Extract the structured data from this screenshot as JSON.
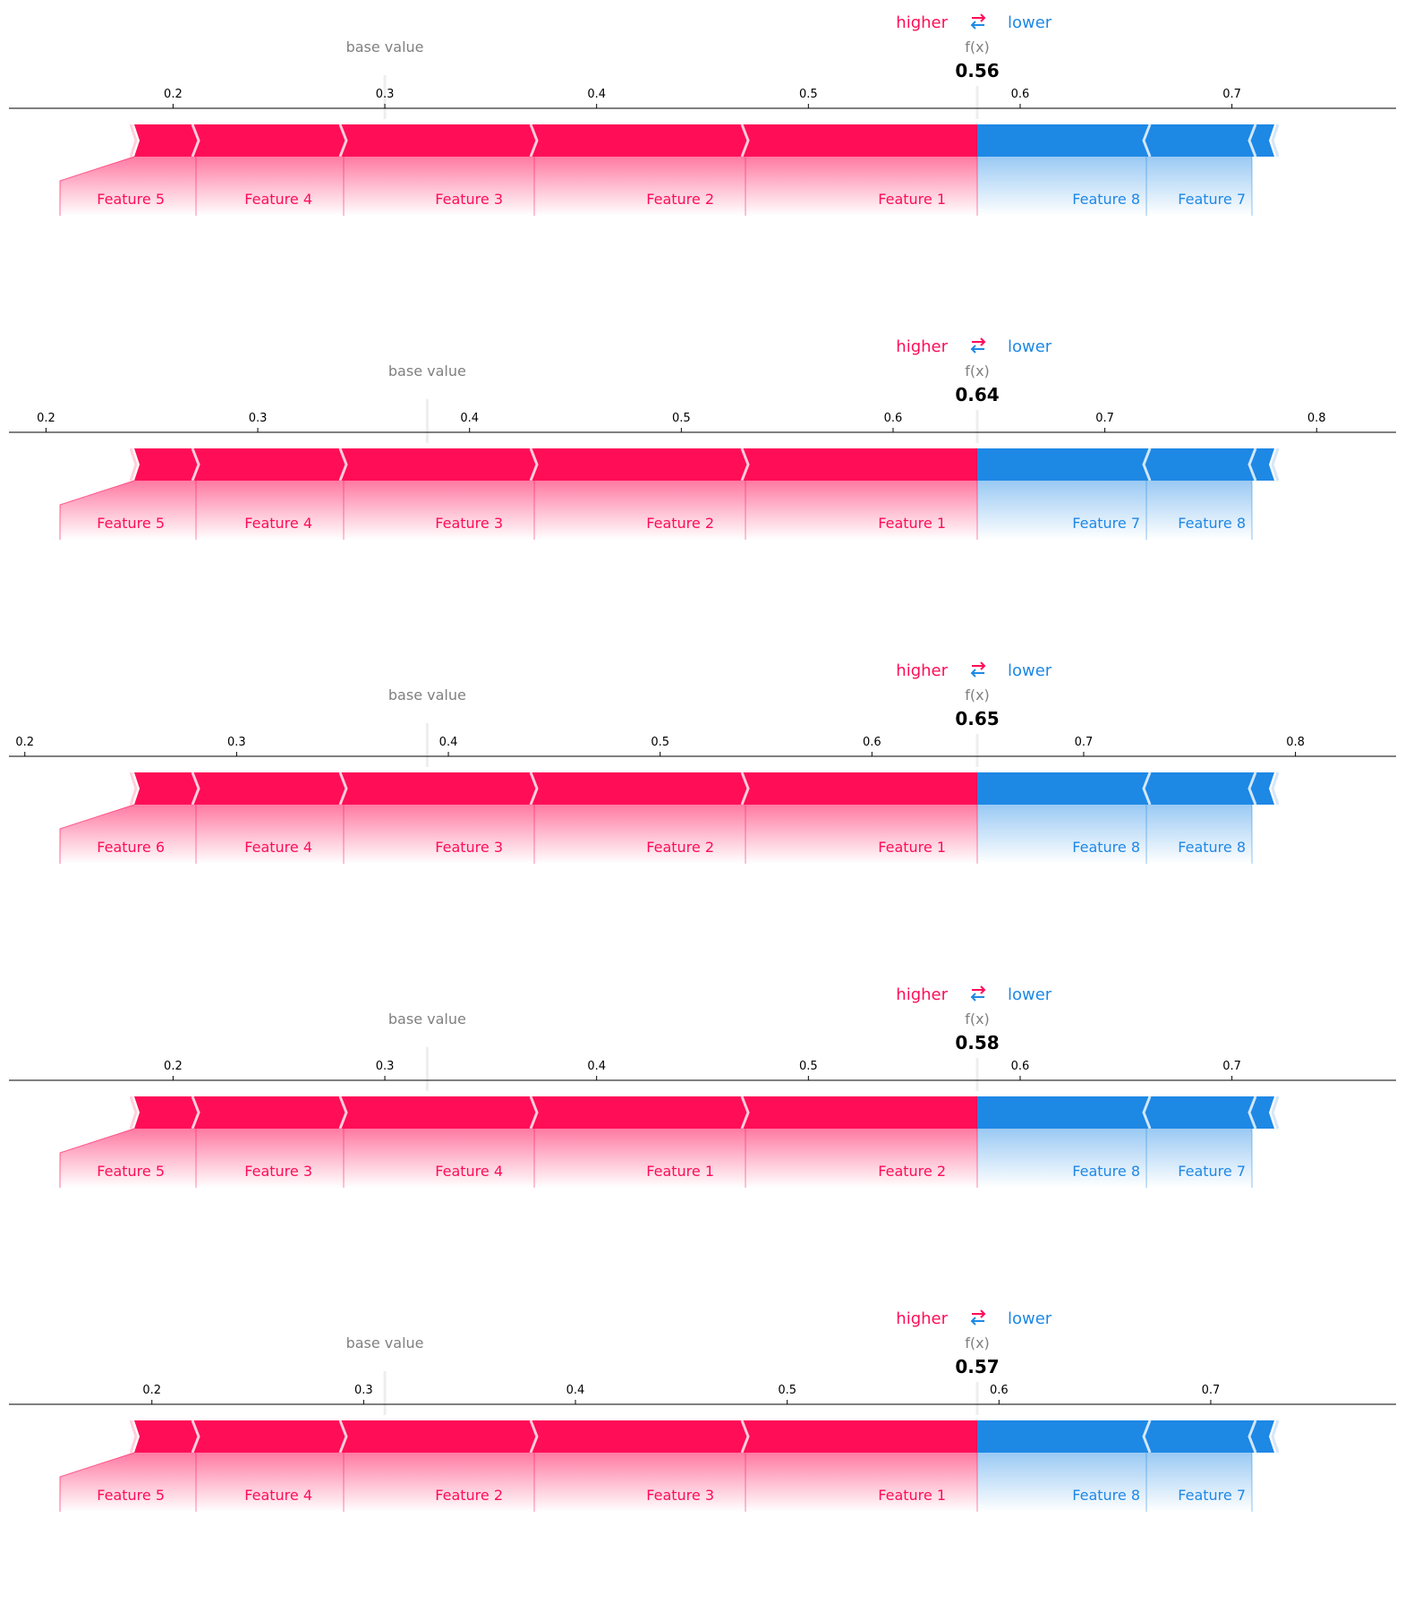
{
  "colors": {
    "positive": "#FF0D57",
    "negative": "#1E88E5",
    "muted": "#808080",
    "axis": "#000000",
    "baseline": "#EEEEEE"
  },
  "legend": {
    "higher": "higher",
    "lower": "lower",
    "arrows_icon": "swap-arrows-icon"
  },
  "labels": {
    "base_value": "base value",
    "fx": "f(x)"
  },
  "chart_data": [
    {
      "type": "force",
      "fx": 0.56,
      "fx_label": "0.56",
      "base_value": 0.3,
      "ticks": [
        "0.2",
        "0.3",
        "0.4",
        "0.5",
        "0.6",
        "0.7"
      ],
      "xlim": [
        0.1225,
        0.7775
      ],
      "positive_features": [
        "Feature 5",
        "Feature 4",
        "Feature 3",
        "Feature 2",
        "Feature 1"
      ],
      "negative_features": [
        "Feature 8",
        "Feature 7"
      ]
    },
    {
      "type": "force",
      "fx": 0.64,
      "fx_label": "0.64",
      "base_value": 0.38,
      "ticks": [
        "0.2",
        "0.3",
        "0.4",
        "0.5",
        "0.6",
        "0.7",
        "0.8"
      ],
      "xlim": [
        0.1825,
        0.8375
      ],
      "positive_features": [
        "Feature 5",
        "Feature 4",
        "Feature 3",
        "Feature 2",
        "Feature 1"
      ],
      "negative_features": [
        "Feature 7",
        "Feature 8"
      ]
    },
    {
      "type": "force",
      "fx": 0.65,
      "fx_label": "0.65",
      "base_value": 0.39,
      "ticks": [
        "0.2",
        "0.3",
        "0.4",
        "0.5",
        "0.6",
        "0.7",
        "0.8"
      ],
      "xlim": [
        0.1925,
        0.8475
      ],
      "positive_features": [
        "Feature 6",
        "Feature 4",
        "Feature 3",
        "Feature 2",
        "Feature 1"
      ],
      "negative_features": [
        "Feature 8",
        "Feature 8"
      ]
    },
    {
      "type": "force",
      "fx": 0.58,
      "fx_label": "0.58",
      "base_value": 0.32,
      "ticks": [
        "0.2",
        "0.3",
        "0.4",
        "0.5",
        "0.6",
        "0.7"
      ],
      "xlim": [
        0.1225,
        0.7775
      ],
      "positive_features": [
        "Feature 5",
        "Feature 3",
        "Feature 4",
        "Feature 1",
        "Feature 2"
      ],
      "negative_features": [
        "Feature 8",
        "Feature 7"
      ]
    },
    {
      "type": "force",
      "fx": 0.57,
      "fx_label": "0.57",
      "base_value": 0.31,
      "ticks": [
        "0.2",
        "0.3",
        "0.4",
        "0.5",
        "0.6",
        "0.7"
      ],
      "xlim": [
        0.1325,
        0.7875
      ],
      "positive_features": [
        "Feature 5",
        "Feature 4",
        "Feature 2",
        "Feature 3",
        "Feature 1"
      ],
      "negative_features": [
        "Feature 8",
        "Feature 7"
      ]
    }
  ]
}
